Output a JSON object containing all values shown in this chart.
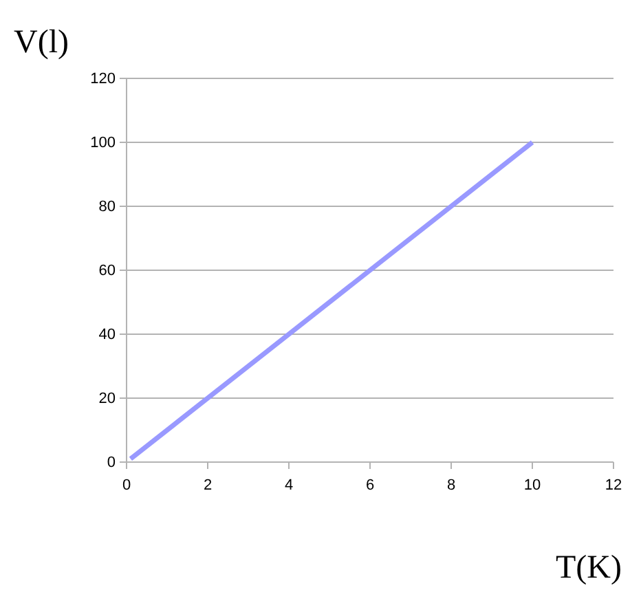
{
  "chart_data": {
    "type": "line",
    "xlabel": "T(K)",
    "ylabel": "V(l)",
    "x": [
      0.1,
      10
    ],
    "series": [
      {
        "color": "#9999ff",
        "values": [
          1,
          100
        ]
      }
    ],
    "xlim": [
      0,
      12
    ],
    "xticks": [
      0,
      2,
      4,
      6,
      8,
      10,
      12
    ],
    "ylim": [
      0,
      120
    ],
    "yticks": [
      0,
      20,
      40,
      60,
      80,
      100,
      120
    ],
    "grid": "y",
    "marker": "none",
    "line_style": "solid"
  }
}
